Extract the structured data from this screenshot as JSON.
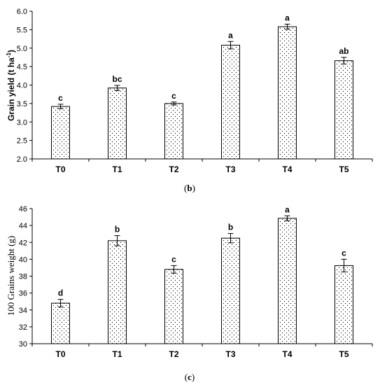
{
  "chart_data": [
    {
      "type": "bar",
      "panel": "(b)",
      "panel_label_parts": {
        "open": "(",
        "letter": "b",
        "close": ")"
      },
      "categories": [
        "T0",
        "T1",
        "T2",
        "T3",
        "T4",
        "T5"
      ],
      "values": [
        3.42,
        3.92,
        3.5,
        5.08,
        5.58,
        4.66
      ],
      "errors": [
        0.06,
        0.07,
        0.04,
        0.1,
        0.07,
        0.09
      ],
      "significance": [
        "c",
        "bc",
        "c",
        "a",
        "a",
        "ab"
      ],
      "ylabel": {
        "main": "Grain yield (t ha",
        "sup": "-1",
        "close": ")"
      },
      "ylim": [
        2.0,
        6.0
      ],
      "yticks": [
        "2.0",
        "2.5",
        "3.0",
        "3.5",
        "4.0",
        "4.5",
        "5.0",
        "5.5",
        "6.0"
      ],
      "grid": false
    },
    {
      "type": "bar",
      "panel": "(c)",
      "panel_label_parts": {
        "open": "(",
        "letter": "c",
        "close": ")"
      },
      "categories": [
        "T0",
        "T1",
        "T2",
        "T3",
        "T4",
        "T5"
      ],
      "values": [
        34.8,
        42.2,
        38.8,
        42.5,
        44.85,
        39.25
      ],
      "errors": [
        0.45,
        0.6,
        0.45,
        0.55,
        0.3,
        0.75
      ],
      "significance": [
        "d",
        "b",
        "c",
        "b",
        "a",
        "c"
      ],
      "ylabel": "100 Grains weight (g)",
      "ylim": [
        30,
        46
      ],
      "yticks": [
        "30",
        "32",
        "34",
        "36",
        "38",
        "40",
        "42",
        "44",
        "46"
      ],
      "grid": false
    }
  ],
  "colors": {
    "bar_fill": "#ffffff",
    "bar_stroke": "#000000",
    "dot_pattern": "#000000",
    "axis": "#000000"
  }
}
